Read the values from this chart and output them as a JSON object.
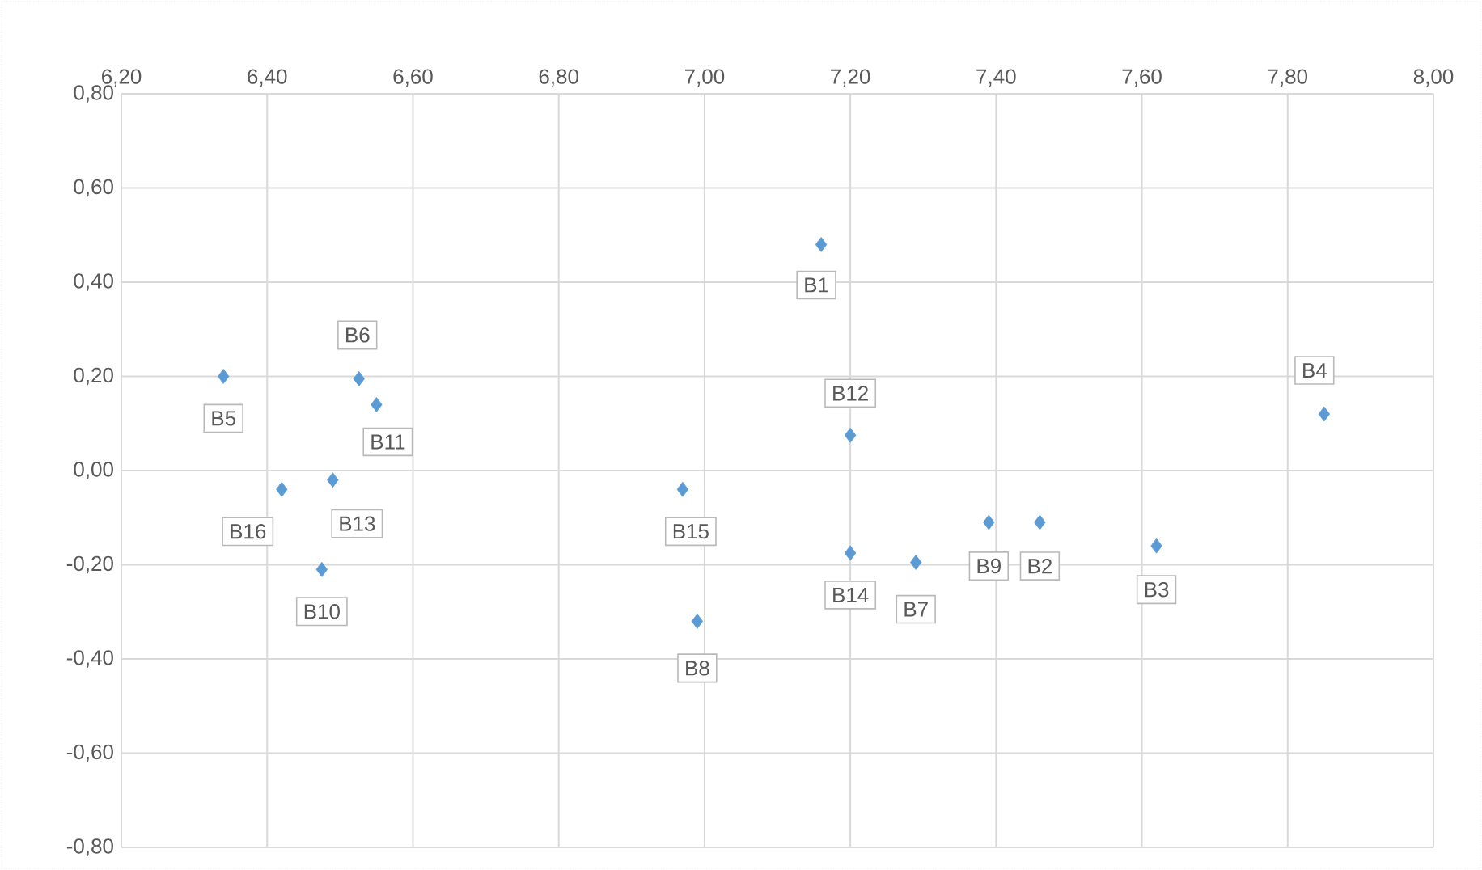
{
  "chart_data": {
    "type": "scatter",
    "x": [
      7.16,
      7.46,
      7.62,
      7.85,
      6.34,
      6.526,
      7.29,
      6.99,
      7.39,
      6.475,
      6.55,
      7.2,
      6.49,
      7.2,
      6.97,
      6.42
    ],
    "series": [
      {
        "color": "#5b9bd5",
        "values": [
          0.48,
          -0.11,
          -0.16,
          0.12,
          0.2,
          0.195,
          -0.195,
          -0.32,
          -0.11,
          -0.21,
          0.14,
          0.075,
          -0.02,
          -0.175,
          -0.04,
          -0.04
        ]
      }
    ],
    "xlim": [
      6.2,
      8.0
    ],
    "xticks": [
      {
        "value": 6.2,
        "label": "6,20"
      },
      {
        "value": 6.4,
        "label": "6,40"
      },
      {
        "value": 6.6,
        "label": "6,60"
      },
      {
        "value": 6.8,
        "label": "6,80"
      },
      {
        "value": 7.0,
        "label": "7,00"
      },
      {
        "value": 7.2,
        "label": "7,20"
      },
      {
        "value": 7.4,
        "label": "7,40"
      },
      {
        "value": 7.6,
        "label": "7,60"
      },
      {
        "value": 7.8,
        "label": "7,80"
      },
      {
        "value": 8.0,
        "label": "8,00"
      }
    ],
    "ylim": [
      -0.8,
      0.8
    ],
    "yticks": [
      {
        "value": 0.8,
        "label": "0,80"
      },
      {
        "value": 0.6,
        "label": "0,60"
      },
      {
        "value": 0.4,
        "label": "0,40"
      },
      {
        "value": 0.2,
        "label": "0,20"
      },
      {
        "value": 0.0,
        "label": "0,00"
      },
      {
        "value": -0.2,
        "label": "-0,20"
      },
      {
        "value": -0.4,
        "label": "-0,40"
      },
      {
        "value": -0.6,
        "label": "-0,60"
      },
      {
        "value": -0.8,
        "label": "-0,80"
      }
    ],
    "grid": true,
    "marker": "diamond",
    "annotations": [
      {
        "text": "B1",
        "x": 7.16,
        "y": 0.48
      },
      {
        "text": "B2",
        "x": 7.46,
        "y": -0.11
      },
      {
        "text": "B3",
        "x": 7.62,
        "y": -0.16
      },
      {
        "text": "B4",
        "x": 7.85,
        "y": 0.12
      },
      {
        "text": "B5",
        "x": 6.34,
        "y": 0.2
      },
      {
        "text": "B6",
        "x": 6.526,
        "y": 0.195
      },
      {
        "text": "B7",
        "x": 7.29,
        "y": -0.195
      },
      {
        "text": "B8",
        "x": 6.99,
        "y": -0.32
      },
      {
        "text": "B9",
        "x": 7.39,
        "y": -0.11
      },
      {
        "text": "B10",
        "x": 6.475,
        "y": -0.21
      },
      {
        "text": "B11",
        "x": 6.55,
        "y": 0.14
      },
      {
        "text": "B12",
        "x": 7.2,
        "y": 0.075
      },
      {
        "text": "B13",
        "x": 6.49,
        "y": -0.02
      },
      {
        "text": "B14",
        "x": 7.2,
        "y": -0.175
      },
      {
        "text": "B15",
        "x": 6.97,
        "y": -0.04
      },
      {
        "text": "B16",
        "x": 6.42,
        "y": -0.04
      }
    ]
  }
}
